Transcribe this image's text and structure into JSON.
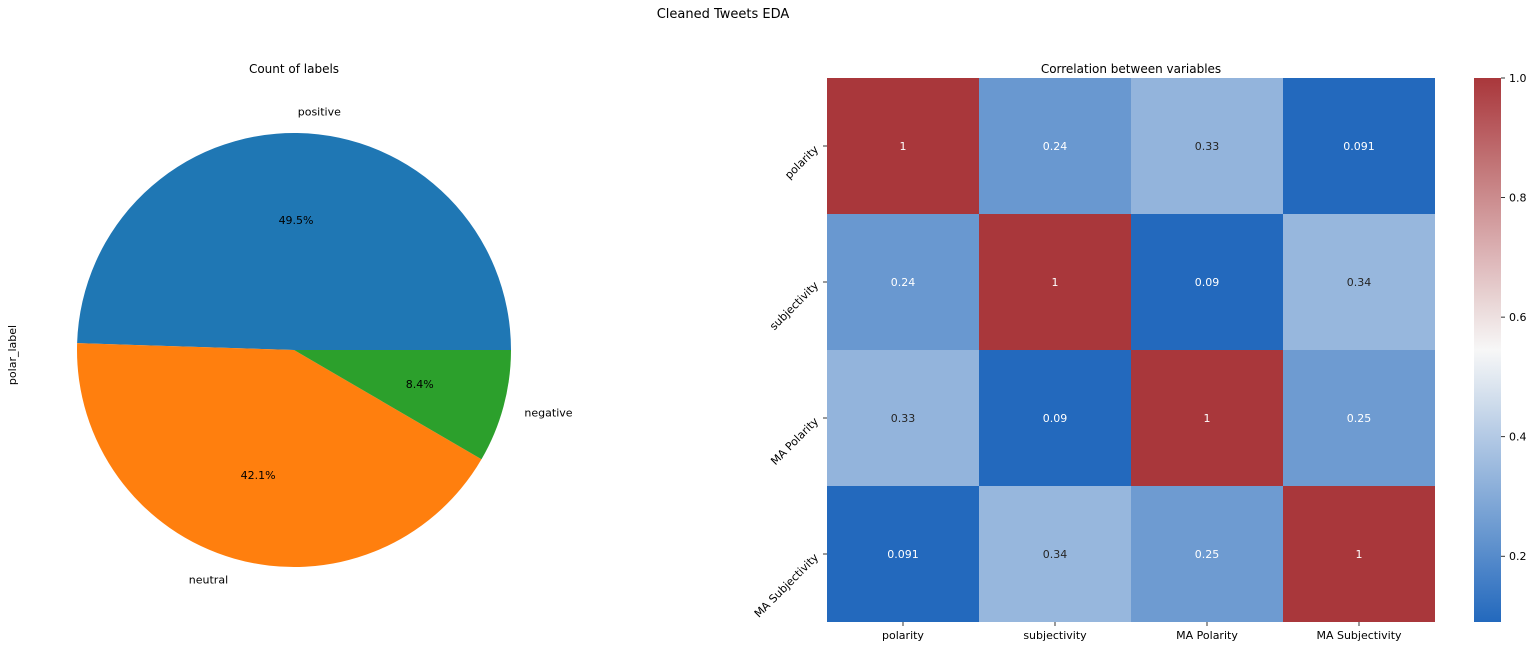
{
  "figure": {
    "suptitle": "Cleaned Tweets EDA"
  },
  "chart_data": [
    {
      "type": "pie",
      "title": "Count of labels",
      "ylabel": "polar_label",
      "slices": [
        {
          "label": "positive",
          "value": 49.5,
          "pct_label": "49.5%",
          "color": "#1f77b4"
        },
        {
          "label": "neutral",
          "value": 42.1,
          "pct_label": "42.1%",
          "color": "#ff7f0e"
        },
        {
          "label": "negative",
          "value": 8.4,
          "pct_label": "8.4%",
          "color": "#2ca02c"
        }
      ],
      "start_angle_deg": 0,
      "direction": "counterclockwise"
    },
    {
      "type": "heatmap",
      "title": "Correlation between variables",
      "x_labels": [
        "polarity",
        "subjectivity",
        "MA Polarity",
        "MA Subjectivity"
      ],
      "y_labels": [
        "polarity",
        "subjectivity",
        "MA Polarity",
        "MA Subjectivity"
      ],
      "values": [
        [
          1,
          0.24,
          0.33,
          0.091
        ],
        [
          0.24,
          1,
          0.09,
          0.34
        ],
        [
          0.33,
          0.09,
          1,
          0.25
        ],
        [
          0.091,
          0.34,
          0.25,
          1
        ]
      ],
      "annotations": [
        [
          "1",
          "0.24",
          "0.33",
          "0.091"
        ],
        [
          "0.24",
          "1",
          "0.09",
          "0.34"
        ],
        [
          "0.33",
          "0.09",
          "1",
          "0.25"
        ],
        [
          "0.091",
          "0.34",
          "0.25",
          "1"
        ]
      ],
      "colorbar": {
        "range": [
          0.09,
          1.0
        ],
        "ticks": [
          0.2,
          0.4,
          0.6,
          0.8,
          1.0
        ],
        "tick_labels": [
          "0.2",
          "0.4",
          "0.6",
          "0.8",
          "1.0"
        ],
        "colors": {
          "low": "#2369bd",
          "mid": "#f7f7f7",
          "high": "#a9373b"
        }
      }
    }
  ]
}
